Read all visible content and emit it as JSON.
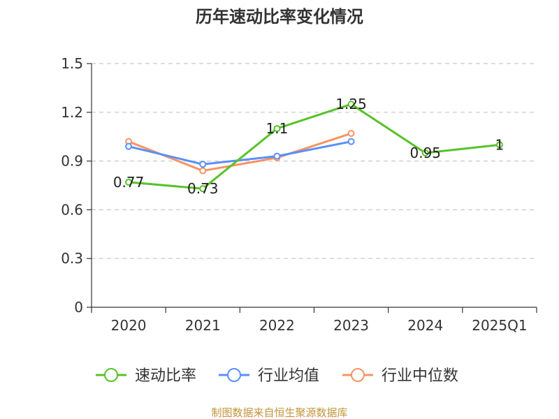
{
  "chart_data": {
    "type": "line",
    "title": "历年速动比率变化情况",
    "categories": [
      "2020",
      "2021",
      "2022",
      "2023",
      "2024",
      "2025Q1"
    ],
    "ylim": [
      0,
      1.5
    ],
    "yticks": [
      "0",
      "0.3",
      "0.6",
      "0.9",
      "1.2",
      "1.5"
    ],
    "ytick_values": [
      0,
      0.3,
      0.6,
      0.9,
      1.2,
      1.5
    ],
    "grid": true,
    "legend_position": "bottom",
    "series": [
      {
        "name": "速动比率",
        "color": "#58c22a",
        "values": [
          0.77,
          0.73,
          1.1,
          1.25,
          0.95,
          1
        ],
        "labels": [
          "0.77",
          "0.73",
          "1.1",
          "1.25",
          "0.95",
          "1"
        ]
      },
      {
        "name": "行业均值",
        "color": "#5b8ff9",
        "values": [
          0.99,
          0.88,
          0.93,
          1.02,
          null,
          null
        ],
        "labels": []
      },
      {
        "name": "行业中位数",
        "color": "#f59463",
        "values": [
          1.02,
          0.84,
          0.92,
          1.07,
          null,
          null
        ],
        "labels": []
      }
    ]
  },
  "source": "制图数据来自恒生聚源数据库"
}
